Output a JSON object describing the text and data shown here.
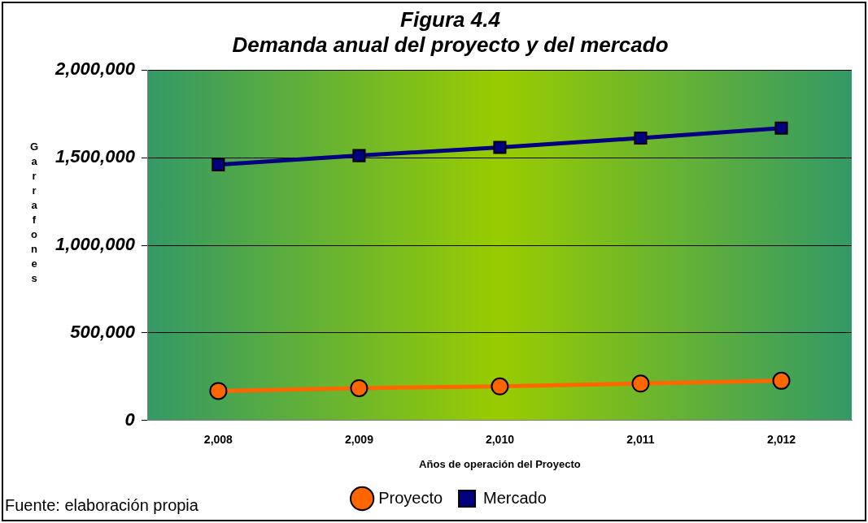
{
  "chart_data": {
    "type": "line",
    "title": "Figura 4.4",
    "subtitle": "Demanda anual del proyecto y del mercado",
    "xlabel": "Años de operación del Proyecto",
    "ylabel": "Garrafones",
    "categories": [
      "2,008",
      "2,009",
      "2,010",
      "2,011",
      "2,012"
    ],
    "series": [
      {
        "name": "Proyecto",
        "color": "#ff6600",
        "marker": "circle",
        "values": [
          168000,
          184000,
          194000,
          210000,
          226000
        ]
      },
      {
        "name": "Mercado",
        "color": "#000080",
        "marker": "square",
        "values": [
          1460000,
          1512000,
          1559000,
          1612000,
          1669000
        ]
      }
    ],
    "ylim": [
      0,
      2000000
    ],
    "yticks": [
      {
        "value": 0,
        "label": "0"
      },
      {
        "value": 500000,
        "label": "500,000"
      },
      {
        "value": 1000000,
        "label": "1,000,000"
      },
      {
        "value": 1500000,
        "label": "1,500,000"
      },
      {
        "value": 2000000,
        "label": "2,000,000"
      }
    ],
    "grid": "y",
    "legend": "bottom",
    "line_style": "solid",
    "annotations": [
      "Fuente: elaboración propia"
    ]
  }
}
